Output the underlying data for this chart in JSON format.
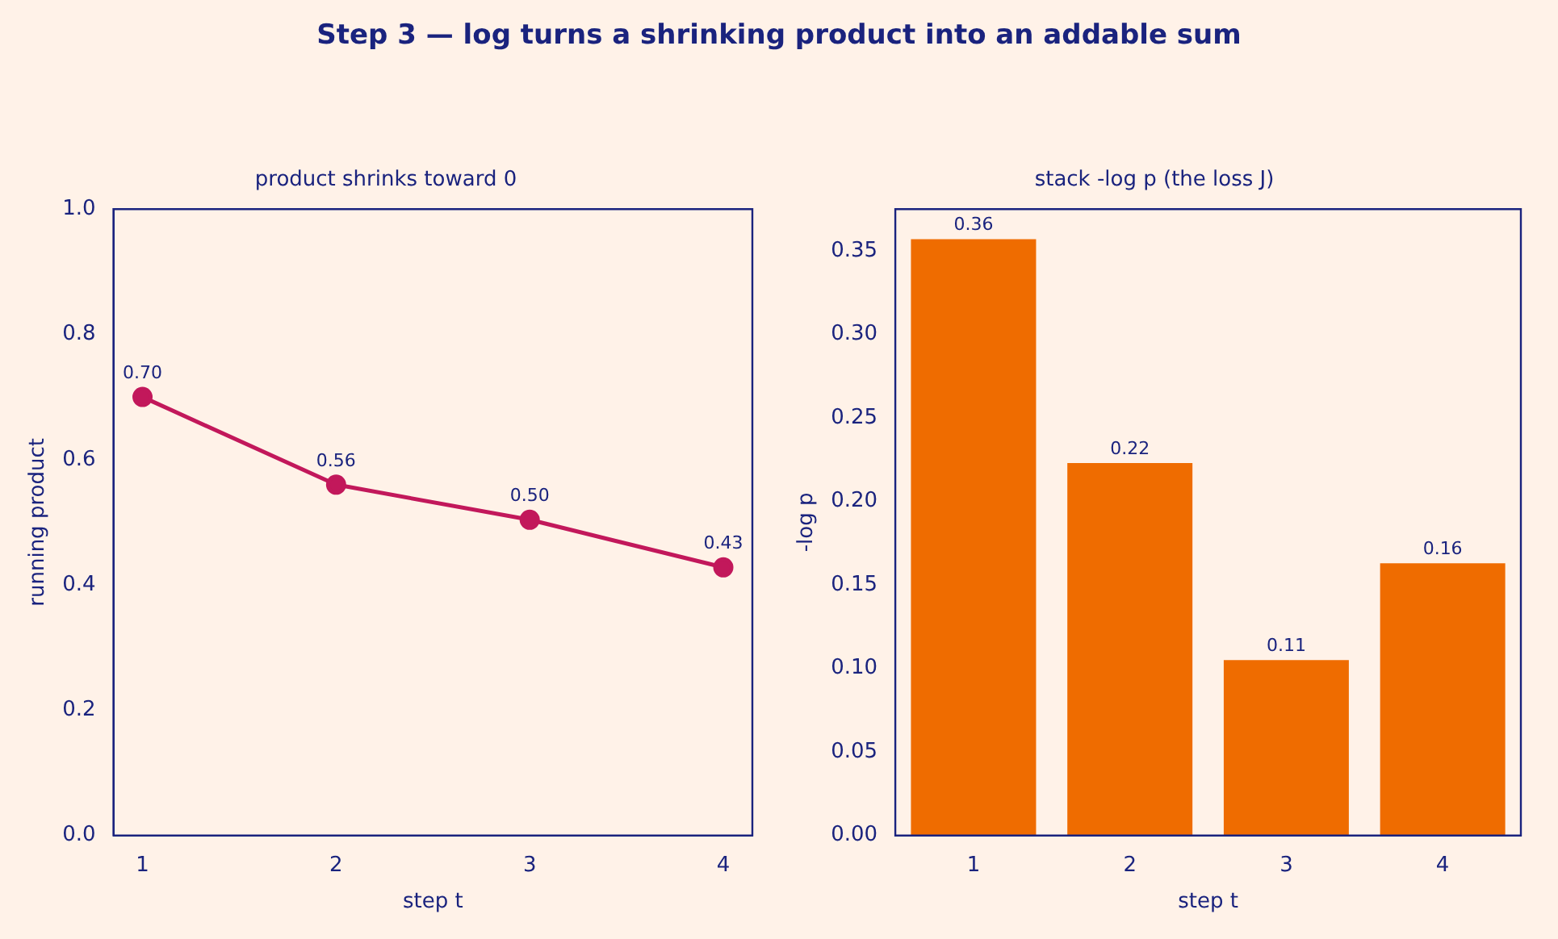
{
  "chart_data": [
    {
      "type": "line",
      "title": "Step 3 — log turns a shrinking product into an addable sum",
      "subtitle": "product shrinks toward 0",
      "xlabel": "step t",
      "ylabel": "running product",
      "x": [
        1,
        2,
        3,
        4
      ],
      "series": [
        {
          "color": "#c2185b",
          "values": [
            0.7,
            0.56,
            0.504,
            0.428
          ],
          "value_labels": [
            "0.70",
            "0.56",
            "0.50",
            "0.43"
          ]
        }
      ],
      "xlim": [
        0.85,
        4.15
      ],
      "xticks": [
        1,
        2,
        3,
        4
      ],
      "ylim": [
        0,
        1
      ],
      "yticks": [
        {
          "value": 0,
          "label": "0.0"
        },
        0.2,
        0.4,
        0.6,
        0.8,
        {
          "value": 1,
          "label": "1.0"
        }
      ],
      "marker": "circle",
      "line_style": "solid",
      "grid": false,
      "legend": false
    },
    {
      "type": "bar",
      "title": "stack -log p (the loss J)",
      "xlabel": "step t",
      "ylabel": "-log p",
      "categories": [
        "1",
        "2",
        "3",
        "4"
      ],
      "series": [
        {
          "color": "#ef6c00",
          "values": [
            0.357,
            0.223,
            0.105,
            0.163
          ],
          "value_labels": [
            "0.36",
            "0.22",
            "0.11",
            "0.16"
          ]
        }
      ],
      "ylim": [
        0,
        0.375
      ],
      "yticks": [
        {
          "value": 0,
          "label": "0.00"
        },
        0.05,
        {
          "value": 0.1,
          "label": "0.10"
        },
        0.15,
        {
          "value": 0.2,
          "label": "0.20"
        },
        0.25,
        {
          "value": 0.3,
          "label": "0.30"
        },
        0.35
      ],
      "grid": false,
      "legend": false
    }
  ]
}
